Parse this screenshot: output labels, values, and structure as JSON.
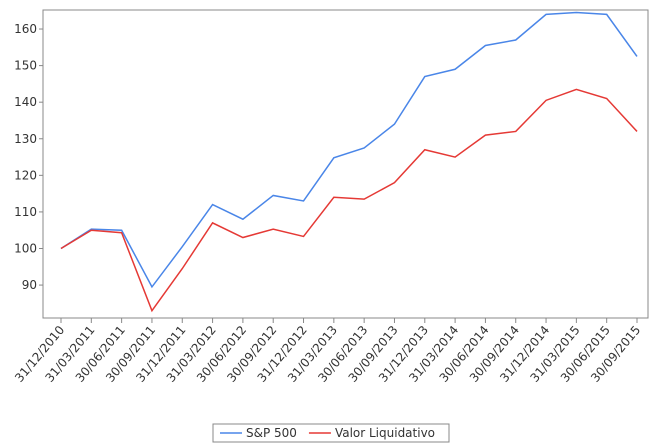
{
  "chart_data": {
    "type": "line",
    "categories": [
      "31/12/2010",
      "31/03/2011",
      "30/06/2011",
      "30/09/2011",
      "31/12/2011",
      "31/03/2012",
      "30/06/2012",
      "30/09/2012",
      "31/12/2012",
      "31/03/2013",
      "30/06/2013",
      "30/09/2013",
      "31/12/2013",
      "31/03/2014",
      "30/06/2014",
      "30/09/2014",
      "31/12/2014",
      "31/03/2015",
      "30/06/2015",
      "30/09/2015"
    ],
    "series": [
      {
        "name": "S&P 500",
        "color": "#4a86e8",
        "values": [
          100,
          105.3,
          105,
          89.5,
          100.5,
          112,
          108,
          114.5,
          113,
          124.8,
          127.5,
          134,
          147,
          149,
          155.5,
          157,
          164,
          164.5,
          164,
          152.5
        ]
      },
      {
        "name": "Valor Liquidativo",
        "color": "#e53935",
        "values": [
          100,
          105,
          104.3,
          83,
          94.5,
          107,
          103,
          105.3,
          103.3,
          114,
          113.5,
          118,
          127,
          125,
          131,
          132,
          140.5,
          143.5,
          141,
          132
        ]
      }
    ],
    "ylim": [
      81,
      165.2
    ],
    "yticks": [
      90,
      100,
      110,
      120,
      130,
      140,
      150,
      160
    ],
    "legend": "bottom"
  }
}
